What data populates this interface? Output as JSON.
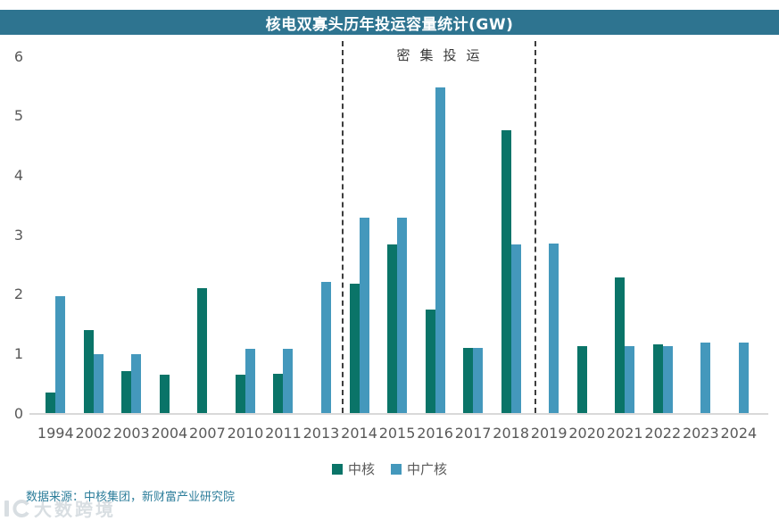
{
  "header": {
    "title": "核电双寡头历年投运容量统计(GW)",
    "bar_color": "#2e7490"
  },
  "annotation": {
    "label": "密集投运",
    "from_category": "2014",
    "to_category": "2018"
  },
  "chart_data": {
    "type": "bar",
    "title": "核电双寡头历年投运容量统计(GW)",
    "categories": [
      "1994",
      "2002",
      "2003",
      "2004",
      "2007",
      "2010",
      "2011",
      "2013",
      "2014",
      "2015",
      "2016",
      "2017",
      "2018",
      "2019",
      "2020",
      "2021",
      "2022",
      "2023",
      "2024"
    ],
    "series": [
      {
        "name": "中核",
        "color": "#0a7468",
        "values": [
          0.34,
          1.4,
          0.71,
          0.65,
          2.1,
          0.65,
          0.66,
          null,
          2.18,
          2.83,
          1.74,
          1.09,
          4.76,
          null,
          1.12,
          2.28,
          1.16,
          null,
          null
        ]
      },
      {
        "name": "中广核",
        "color": "#4498bc",
        "values": [
          1.97,
          0.99,
          0.99,
          null,
          null,
          1.08,
          1.08,
          2.21,
          3.29,
          3.29,
          5.47,
          1.09,
          2.84,
          2.85,
          null,
          1.12,
          1.12,
          1.18,
          1.18
        ]
      }
    ],
    "xlabel": "",
    "ylabel": "",
    "ylim": [
      0,
      6
    ],
    "yticks": [
      0,
      1,
      2,
      3,
      4,
      5,
      6
    ],
    "grid": false,
    "legend_position": "bottom",
    "annotation": "密集投运"
  },
  "footer": {
    "source": "数据来源：中核集团，新财富产业研究院",
    "watermark": "大数跨境"
  }
}
